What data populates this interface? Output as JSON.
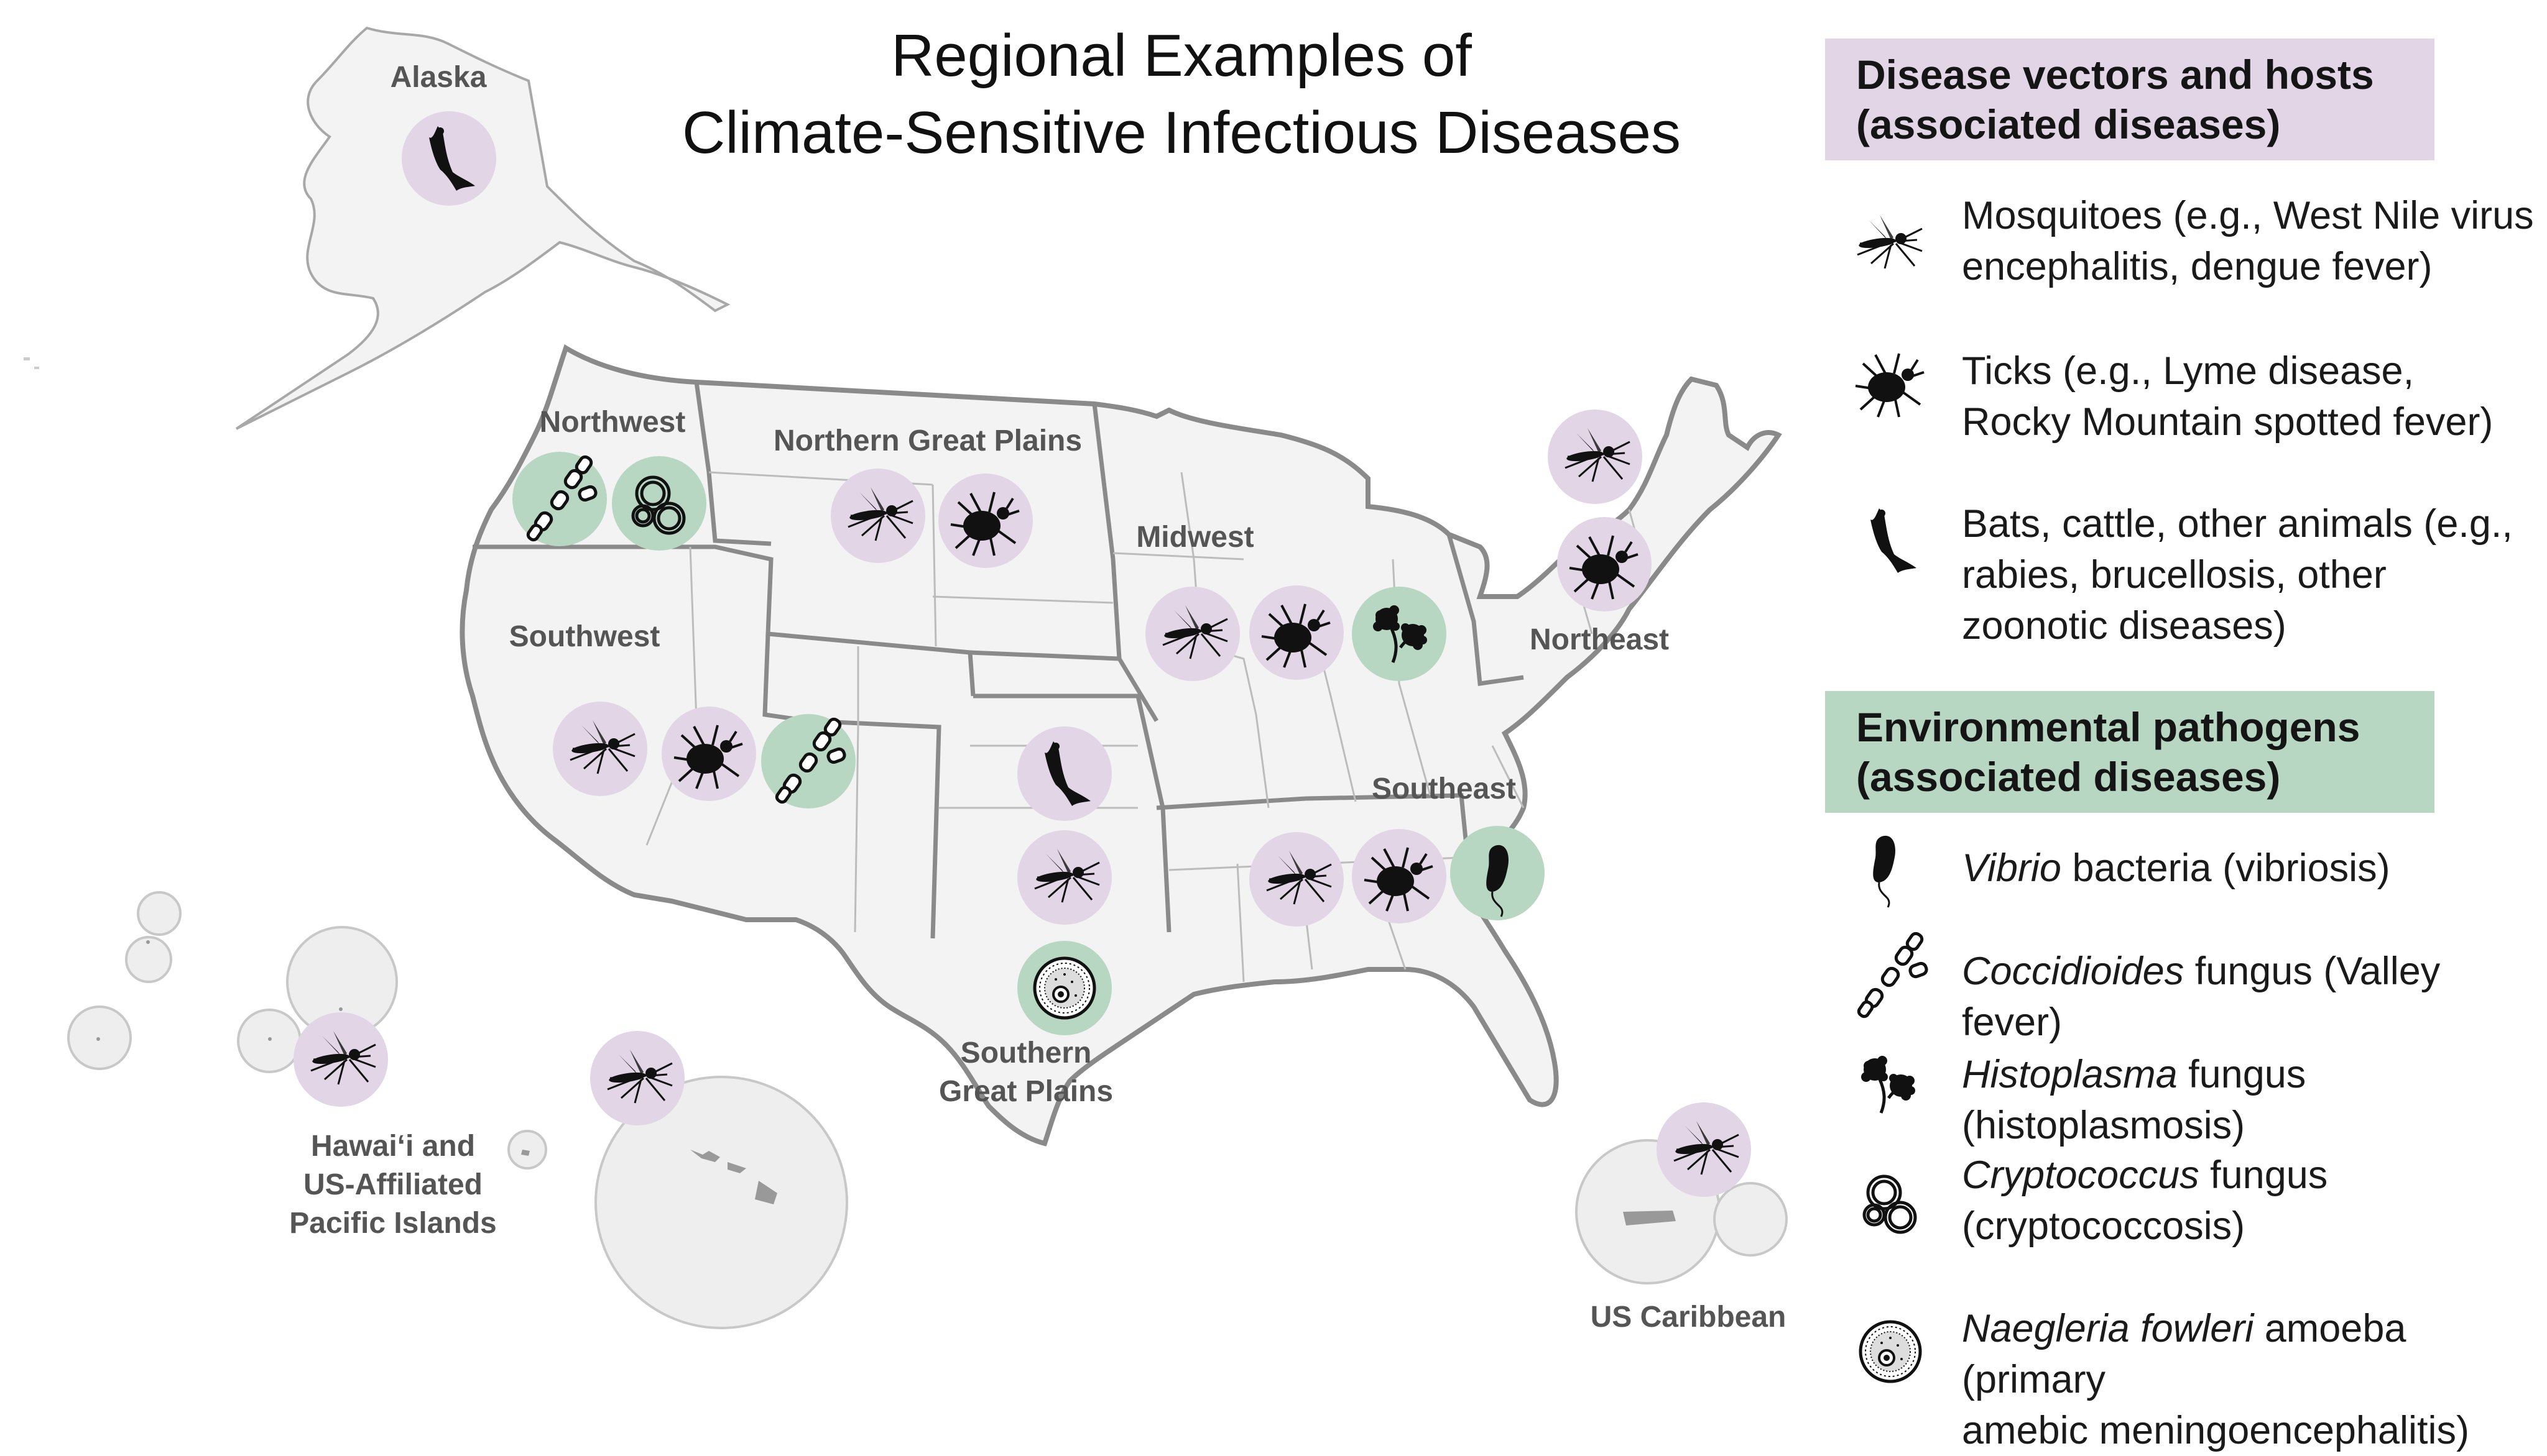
{
  "title": {
    "line1": "Regional Examples of",
    "line2": "Climate-Sensitive Infectious Diseases"
  },
  "regions": {
    "alaska": "Alaska",
    "northwest": "Northwest",
    "northern_great_plains": "Northern Great Plains",
    "midwest": "Midwest",
    "northeast": "Northeast",
    "southwest": "Southwest",
    "southeast": "Southeast",
    "southern_great_plains_1": "Southern",
    "southern_great_plains_2": "Great Plains",
    "hawaii_1": "Hawai‘i and",
    "hawaii_2": "US-Affiliated",
    "hawaii_3": "Pacific Islands",
    "caribbean": "US Caribbean"
  },
  "legend": {
    "vectors_header": {
      "line1": "Disease vectors and hosts",
      "line2": "(associated diseases)",
      "color": "#e2d5e6"
    },
    "pathogens_header": {
      "line1": "Environmental pathogens",
      "line2": "(associated diseases)",
      "color": "#b7d7c2"
    },
    "vectors": [
      {
        "icon": "mosquito-icon",
        "line1": "Mosquitoes (e.g., West Nile virus",
        "line2": "encephalitis, dengue fever)"
      },
      {
        "icon": "tick-icon",
        "line1": "Ticks (e.g., Lyme disease,",
        "line2": "Rocky Mountain spotted fever)"
      },
      {
        "icon": "bat-icon",
        "line1": "Bats, cattle, other animals (e.g.,",
        "line2": "rabies, brucellosis, other",
        "line3": "zoonotic diseases)"
      }
    ],
    "pathogens": [
      {
        "icon": "vibrio-icon",
        "italic": "Vibrio",
        "rest": " bacteria (vibriosis)"
      },
      {
        "icon": "coccidioides-icon",
        "italic": "Coccidioides",
        "rest": " fungus (Valley fever)"
      },
      {
        "icon": "histoplasma-icon",
        "italic": "Histoplasma",
        "rest": " fungus (histoplasmosis)"
      },
      {
        "icon": "cryptococcus-icon",
        "italic": "Cryptococcus",
        "rest": " fungus",
        "line2": "(cryptococcosis)"
      },
      {
        "icon": "naegleria-icon",
        "italic": "Naegleria fowleri",
        "rest": " amoeba  (primary",
        "line2": "amebic meningoencephalitis)"
      }
    ]
  },
  "colors": {
    "vector_circle": "#e2d5e6",
    "pathogen_circle": "#b7d7c2",
    "land": "#f3f3f3",
    "border": "#888888",
    "icon": "#111111"
  }
}
